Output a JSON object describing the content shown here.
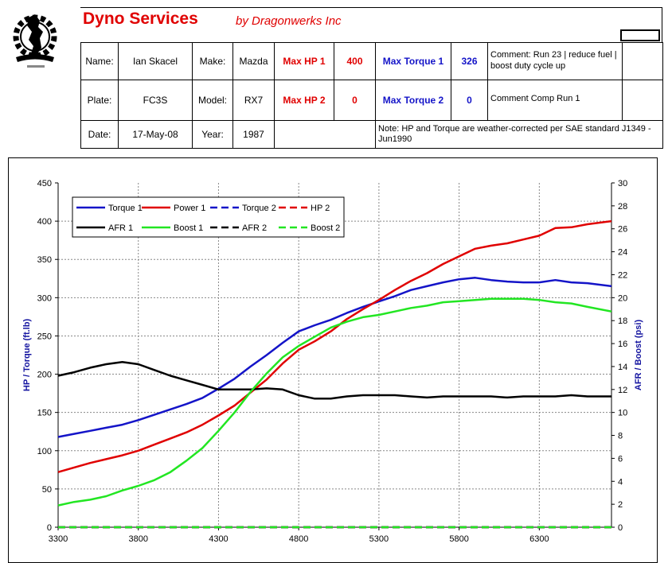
{
  "header": {
    "title": "Dyno Services",
    "byline": "by Dragonwerks Inc"
  },
  "info": {
    "name_label": "Name:",
    "name": "Ian  Skacel",
    "make_label": "Make:",
    "make": "Mazda",
    "maxhp1_label": "Max HP 1",
    "maxhp1": "400",
    "maxtq1_label": "Max Torque 1",
    "maxtq1": "326",
    "comment1": "Comment: Run 23 | reduce fuel | boost duty cycle up",
    "plate_label": "Plate:",
    "plate": "FC3S",
    "model_label": "Model:",
    "model": "RX7",
    "maxhp2_label": "Max HP 2",
    "maxhp2": "0",
    "maxtq2_label": "Max Torque 2",
    "maxtq2": "0",
    "comment2": "Comment Comp Run 1",
    "date_label": "Date:",
    "date": "17-May-08",
    "year_label": "Year:",
    "year": "1987",
    "note": "Note: HP and Torque are weather-corrected per SAE standard J1349 - Jun1990"
  },
  "colors": {
    "torque": "#1414c8",
    "power": "#e00000",
    "afr": "#000000",
    "boost": "#22e622"
  },
  "chart_data": {
    "type": "line",
    "xlabel": "",
    "ylabel": "HP / Torque (ft.lb)",
    "y2label": "AFR / Boost (psi)",
    "xlim": [
      3300,
      6750
    ],
    "ylim": [
      0,
      450
    ],
    "y2lim": [
      0,
      30
    ],
    "xticks": [
      "3300",
      "3800",
      "4300",
      "4800",
      "5300",
      "5800",
      "6300"
    ],
    "xtick_values": [
      3300,
      3800,
      4300,
      4800,
      5300,
      5800,
      6300
    ],
    "yticks": [
      "0",
      "50",
      "100",
      "150",
      "200",
      "250",
      "300",
      "350",
      "400",
      "450"
    ],
    "y2ticks": [
      "0",
      "2",
      "4",
      "6",
      "8",
      "10",
      "12",
      "14",
      "16",
      "18",
      "20",
      "22",
      "24",
      "26",
      "28",
      "30"
    ],
    "grid": true,
    "legend_position": "top-left",
    "series": [
      {
        "name": "Torque 1",
        "axis": "left",
        "style": "solid",
        "color_key": "torque",
        "x": [
          3300,
          3400,
          3500,
          3600,
          3700,
          3800,
          3900,
          4000,
          4100,
          4200,
          4300,
          4400,
          4500,
          4600,
          4700,
          4800,
          4900,
          5000,
          5100,
          5200,
          5300,
          5400,
          5500,
          5600,
          5700,
          5800,
          5900,
          6000,
          6100,
          6200,
          6300,
          6400,
          6500,
          6600,
          6750
        ],
        "values": [
          118,
          122,
          126,
          130,
          134,
          140,
          147,
          154,
          161,
          169,
          181,
          194,
          210,
          225,
          241,
          256,
          264,
          271,
          280,
          288,
          295,
          302,
          310,
          315,
          320,
          324,
          326,
          323,
          321,
          320,
          320,
          323,
          320,
          319,
          315
        ]
      },
      {
        "name": "Power 1",
        "axis": "left",
        "style": "solid",
        "color_key": "power",
        "x": [
          3300,
          3400,
          3500,
          3600,
          3700,
          3800,
          3900,
          4000,
          4100,
          4200,
          4300,
          4400,
          4500,
          4600,
          4700,
          4800,
          4900,
          5000,
          5100,
          5200,
          5300,
          5400,
          5500,
          5600,
          5700,
          5800,
          5900,
          6000,
          6100,
          6200,
          6300,
          6400,
          6500,
          6600,
          6750
        ],
        "values": [
          72,
          78,
          84,
          89,
          94,
          100,
          108,
          116,
          124,
          134,
          146,
          159,
          176,
          193,
          214,
          232,
          243,
          256,
          272,
          285,
          297,
          310,
          322,
          332,
          344,
          354,
          364,
          368,
          371,
          376,
          381,
          391,
          392,
          396,
          400
        ]
      },
      {
        "name": "Torque 2",
        "axis": "left",
        "style": "dashed",
        "color_key": "torque",
        "x": [
          3300,
          6750
        ],
        "values": [
          0,
          0
        ]
      },
      {
        "name": "HP 2",
        "axis": "left",
        "style": "dashed",
        "color_key": "power",
        "x": [
          3300,
          6750
        ],
        "values": [
          0,
          0
        ]
      },
      {
        "name": "AFR 1",
        "axis": "right",
        "style": "solid",
        "color_key": "afr",
        "x": [
          3300,
          3400,
          3500,
          3600,
          3700,
          3800,
          3900,
          4000,
          4100,
          4200,
          4300,
          4400,
          4500,
          4600,
          4700,
          4800,
          4900,
          5000,
          5100,
          5200,
          5300,
          5400,
          5500,
          5600,
          5700,
          5800,
          5900,
          6000,
          6100,
          6200,
          6300,
          6400,
          6500,
          6600,
          6750
        ],
        "values": [
          13.2,
          13.5,
          13.9,
          14.2,
          14.4,
          14.2,
          13.7,
          13.2,
          12.8,
          12.4,
          12.0,
          12.0,
          12.0,
          12.1,
          12.0,
          11.5,
          11.2,
          11.2,
          11.4,
          11.5,
          11.5,
          11.5,
          11.4,
          11.3,
          11.4,
          11.4,
          11.4,
          11.4,
          11.3,
          11.4,
          11.4,
          11.4,
          11.5,
          11.4,
          11.4
        ]
      },
      {
        "name": "Boost 1",
        "axis": "right",
        "style": "solid",
        "color_key": "boost",
        "x": [
          3300,
          3400,
          3500,
          3600,
          3700,
          3800,
          3900,
          4000,
          4100,
          4200,
          4300,
          4400,
          4500,
          4600,
          4700,
          4800,
          4900,
          5000,
          5100,
          5200,
          5300,
          5400,
          5500,
          5600,
          5700,
          5800,
          5900,
          6000,
          6100,
          6200,
          6300,
          6400,
          6500,
          6600,
          6750
        ],
        "values": [
          1.9,
          2.2,
          2.4,
          2.7,
          3.2,
          3.6,
          4.1,
          4.8,
          5.8,
          6.9,
          8.4,
          10.0,
          11.8,
          13.4,
          14.8,
          15.8,
          16.6,
          17.4,
          17.9,
          18.3,
          18.5,
          18.8,
          19.1,
          19.3,
          19.6,
          19.7,
          19.8,
          19.9,
          19.9,
          19.9,
          19.8,
          19.6,
          19.5,
          19.2,
          18.8
        ]
      },
      {
        "name": "AFR 2",
        "axis": "right",
        "style": "dashed",
        "color_key": "afr",
        "x": [
          3300,
          6750
        ],
        "values": [
          0,
          0
        ]
      },
      {
        "name": "Boost 2",
        "axis": "right",
        "style": "dashed",
        "color_key": "boost",
        "x": [
          3300,
          6750
        ],
        "values": [
          0,
          0
        ]
      }
    ]
  }
}
